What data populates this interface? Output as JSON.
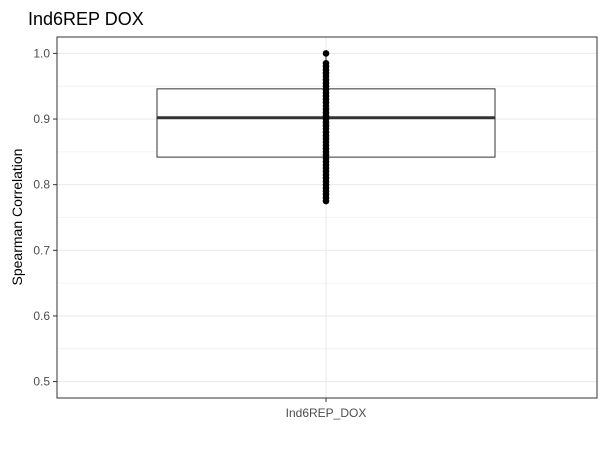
{
  "chart_data": {
    "type": "box",
    "title": "Ind6REP DOX",
    "xlabel": "",
    "ylabel": "Spearman Correlation",
    "categories": [
      "Ind6REP_DOX"
    ],
    "ylim": [
      0.475,
      1.025
    ],
    "yticks": [
      0.5,
      0.6,
      0.7,
      0.8,
      0.9,
      1.0
    ],
    "ytick_labels": [
      "0.5",
      "0.6",
      "0.7",
      "0.8",
      "0.9",
      "1.0"
    ],
    "grid": true,
    "box": {
      "q1": 0.842,
      "median": 0.902,
      "q3": 0.946,
      "whisker_low": 0.775,
      "whisker_high": 1.0
    },
    "points": [
      0.775,
      0.78,
      0.785,
      0.79,
      0.795,
      0.8,
      0.805,
      0.81,
      0.815,
      0.82,
      0.825,
      0.83,
      0.835,
      0.84,
      0.845,
      0.85,
      0.855,
      0.86,
      0.865,
      0.87,
      0.875,
      0.88,
      0.885,
      0.89,
      0.895,
      0.9,
      0.905,
      0.91,
      0.915,
      0.92,
      0.925,
      0.93,
      0.935,
      0.94,
      0.945,
      0.95,
      0.955,
      0.96,
      0.965,
      0.97,
      0.975,
      0.98,
      0.985,
      1.0
    ],
    "colors": {
      "box_stroke": "#333333",
      "median": "#333333",
      "point": "#000000",
      "grid": "#ebebeb",
      "panel_border": "#333333",
      "tick_text": "#4d4d4d"
    }
  }
}
